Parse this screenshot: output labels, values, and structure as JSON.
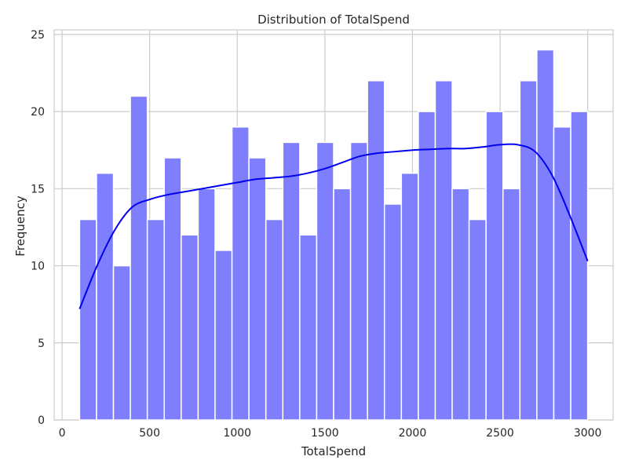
{
  "chart_data": {
    "type": "bar",
    "title": "Distribution of TotalSpend",
    "xlabel": "TotalSpend",
    "ylabel": "Frequency",
    "xlim": [
      -45,
      3145
    ],
    "ylim": [
      0,
      25.3
    ],
    "xticks": [
      0,
      500,
      1000,
      1500,
      2000,
      2500,
      3000
    ],
    "yticks": [
      0,
      5,
      10,
      15,
      20,
      25
    ],
    "grid": true,
    "bins": {
      "edges": [
        100,
        196.67,
        293.33,
        390,
        486.67,
        583.33,
        680,
        776.67,
        873.33,
        970,
        1066.67,
        1163.33,
        1260,
        1356.67,
        1453.33,
        1550,
        1646.67,
        1743.33,
        1840,
        1936.67,
        2033.33,
        2130,
        2226.67,
        2323.33,
        2420,
        2516.67,
        2613.33,
        2710,
        2806.67,
        2903.33,
        3000
      ],
      "counts": [
        13,
        16,
        10,
        21,
        13,
        17,
        12,
        15,
        11,
        19,
        17,
        13,
        18,
        12,
        18,
        15,
        18,
        22,
        14,
        16,
        20,
        22,
        15,
        13,
        20,
        15,
        22,
        24,
        19,
        20
      ]
    },
    "bar_color": "#7f7ffe",
    "kde": {
      "color": "#0000ee",
      "x": [
        100,
        200,
        300,
        400,
        500,
        600,
        700,
        800,
        900,
        1000,
        1100,
        1200,
        1300,
        1400,
        1500,
        1600,
        1700,
        1800,
        1900,
        2000,
        2100,
        2200,
        2300,
        2400,
        2500,
        2600,
        2700,
        2800,
        2900,
        3000
      ],
      "y": [
        7.2,
        10.0,
        12.3,
        13.8,
        14.3,
        14.6,
        14.8,
        15.0,
        15.2,
        15.4,
        15.6,
        15.7,
        15.8,
        16.0,
        16.3,
        16.7,
        17.1,
        17.3,
        17.4,
        17.5,
        17.55,
        17.6,
        17.6,
        17.7,
        17.85,
        17.85,
        17.4,
        15.8,
        13.2,
        10.3
      ]
    }
  }
}
